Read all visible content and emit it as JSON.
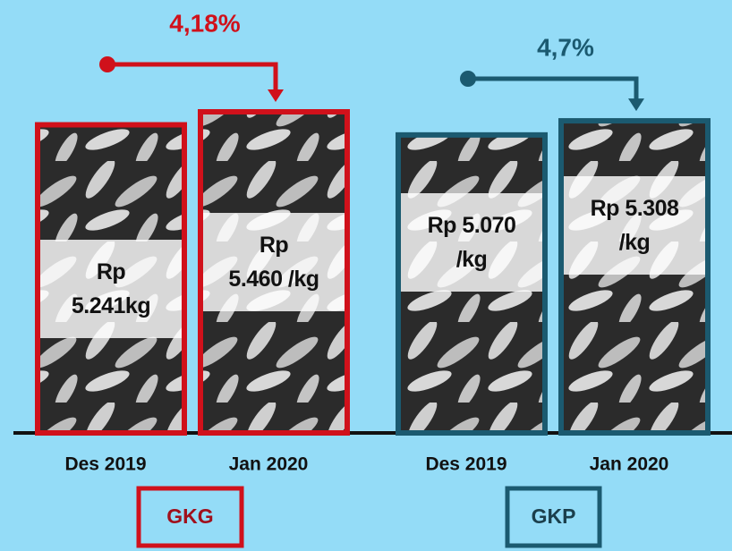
{
  "chart_data": [
    {
      "type": "bar",
      "group": "GKG",
      "annotation": "4,18%",
      "color": "#d0111b",
      "categories": [
        "Des 2019",
        "Jan 2020"
      ],
      "values": [
        5241,
        5460
      ],
      "value_labels": [
        "Rp\n5.241kg",
        "Rp\n5.460 /kg"
      ]
    },
    {
      "type": "bar",
      "group": "GKP",
      "annotation": "4,7%",
      "color": "#1b5a70",
      "categories": [
        "Des 2019",
        "Jan 2020"
      ],
      "values": [
        5070,
        5308
      ],
      "value_labels": [
        "Rp 5.070\n/kg",
        "Rp 5.308\n/kg"
      ]
    }
  ]
}
